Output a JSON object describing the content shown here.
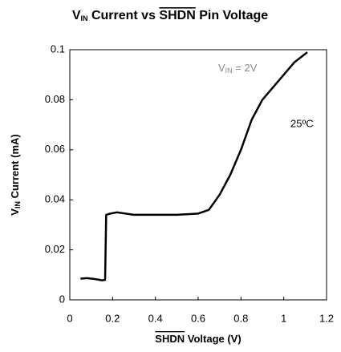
{
  "chart_data": {
    "type": "line",
    "title": [
      "V",
      "IN",
      " Current vs ",
      "SHDN",
      " Pin Voltage"
    ],
    "x_label": [
      "SHDN",
      " Voltage (V)"
    ],
    "y_label": [
      "V",
      "IN",
      " Current (mA)"
    ],
    "annotations": [
      [
        "V",
        "IN",
        " = 2V"
      ],
      "25ºC"
    ],
    "x": [
      0.05,
      0.08,
      0.12,
      0.15,
      0.165,
      0.17,
      0.19,
      0.22,
      0.3,
      0.4,
      0.5,
      0.6,
      0.65,
      0.7,
      0.75,
      0.8,
      0.85,
      0.9,
      0.95,
      1.0,
      1.05,
      1.11
    ],
    "series": [
      {
        "name": null,
        "color": "#000000",
        "values": [
          0.0085,
          0.0087,
          0.0083,
          0.0078,
          0.008,
          0.034,
          0.0345,
          0.035,
          0.034,
          0.034,
          0.034,
          0.0345,
          0.036,
          0.042,
          0.05,
          0.06,
          0.072,
          0.08,
          0.085,
          0.09,
          0.095,
          0.099
        ]
      }
    ],
    "xlim": [
      0,
      1.2
    ],
    "xticks": [
      0,
      0.2,
      0.4,
      0.6,
      0.8,
      1,
      1.2
    ],
    "ylim": [
      0,
      0.1
    ],
    "yticks": [
      0,
      0.02,
      0.04,
      0.06,
      0.08,
      0.1
    ],
    "grid": false
  }
}
